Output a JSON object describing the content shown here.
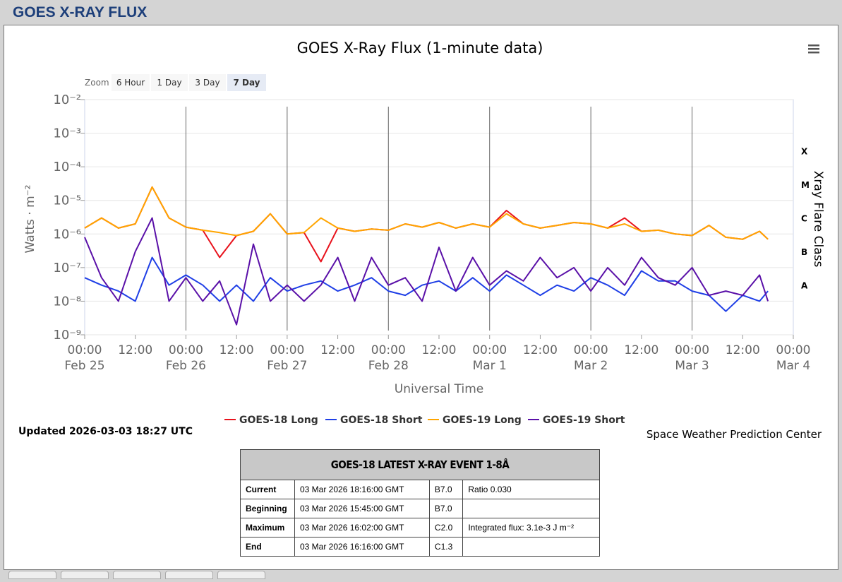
{
  "header": {
    "title": "GOES X-RAY FLUX"
  },
  "chart_data": {
    "type": "line",
    "title": "GOES X-Ray Flux (1-minute data)",
    "zoom": {
      "label": "Zoom",
      "buttons": [
        "6 Hour",
        "1 Day",
        "3 Day",
        "7 Day"
      ],
      "selected": 3
    },
    "x_title": "Universal Time",
    "y_title": "Watts · m⁻²",
    "y2_title": "Xray Flare Class",
    "log_y": true,
    "grid": true,
    "xlim": [
      0,
      168
    ],
    "xticks": [
      {
        "value": 0,
        "label": "00:00\nFeb 25"
      },
      {
        "value": 12,
        "label": "12:00"
      },
      {
        "value": 24,
        "label": "00:00\nFeb 26"
      },
      {
        "value": 36,
        "label": "12:00"
      },
      {
        "value": 48,
        "label": "00:00\nFeb 27"
      },
      {
        "value": 60,
        "label": "12:00"
      },
      {
        "value": 72,
        "label": "00:00\nFeb 28"
      },
      {
        "value": 84,
        "label": "12:00"
      },
      {
        "value": 96,
        "label": "00:00\nMar 1"
      },
      {
        "value": 108,
        "label": "12:00"
      },
      {
        "value": 120,
        "label": "00:00\nMar 2"
      },
      {
        "value": 132,
        "label": "12:00"
      },
      {
        "value": 144,
        "label": "00:00\nMar 3"
      },
      {
        "value": 156,
        "label": "12:00"
      },
      {
        "value": 168,
        "label": "00:00\nMar 4"
      }
    ],
    "ylim": [
      1e-09,
      0.01
    ],
    "yticks": [
      {
        "value": 1e-09,
        "label": "10⁻⁹"
      },
      {
        "value": 1e-08,
        "label": "10⁻⁸"
      },
      {
        "value": 1e-07,
        "label": "10⁻⁷"
      },
      {
        "value": 1e-06,
        "label": "10⁻⁶"
      },
      {
        "value": 1e-05,
        "label": "10⁻⁵"
      },
      {
        "value": 0.0001,
        "label": "10⁻⁴"
      },
      {
        "value": 0.001,
        "label": "10⁻³"
      },
      {
        "value": 0.01,
        "label": "10⁻²"
      }
    ],
    "y2lim": [
      1e-09,
      0.01
    ],
    "y2ticks": [
      {
        "value": 3e-08,
        "label": "A"
      },
      {
        "value": 3e-07,
        "label": "B"
      },
      {
        "value": 3e-06,
        "label": "C"
      },
      {
        "value": 3e-05,
        "label": "M"
      },
      {
        "value": 0.0003,
        "label": "X"
      }
    ],
    "x": [
      0,
      4,
      8,
      12,
      16,
      20,
      24,
      28,
      32,
      36,
      40,
      44,
      48,
      52,
      56,
      60,
      64,
      68,
      72,
      76,
      80,
      84,
      88,
      92,
      96,
      100,
      104,
      108,
      112,
      116,
      120,
      124,
      128,
      132,
      136,
      140,
      144,
      148,
      152,
      156,
      160,
      162
    ],
    "series": [
      {
        "name": "GOES-18 Long",
        "color": "#e8121c",
        "values": [
          1.5e-06,
          3e-06,
          1.5e-06,
          2e-06,
          2.5e-05,
          3e-06,
          1.6e-06,
          1.3e-06,
          2e-07,
          9e-07,
          1.2e-06,
          4e-06,
          1e-06,
          1.1e-06,
          1.5e-07,
          1.5e-06,
          1.2e-06,
          1.4e-06,
          1.3e-06,
          2e-06,
          1.6e-06,
          2.2e-06,
          1.5e-06,
          2e-06,
          1.6e-06,
          5e-06,
          2e-06,
          1.5e-06,
          1.8e-06,
          2.2e-06,
          2e-06,
          1.5e-06,
          3e-06,
          1.2e-06,
          1.3e-06,
          1e-06,
          9e-07,
          1.8e-06,
          8e-07,
          7e-07,
          1.2e-06,
          7e-07
        ]
      },
      {
        "name": "GOES-18 Short",
        "color": "#1f3fe6",
        "values": [
          5e-08,
          3e-08,
          2e-08,
          1e-08,
          2e-07,
          3e-08,
          6e-08,
          3e-08,
          1e-08,
          3e-08,
          1e-08,
          5e-08,
          2e-08,
          3e-08,
          4e-08,
          2e-08,
          3e-08,
          5e-08,
          2e-08,
          1.5e-08,
          3e-08,
          4e-08,
          2e-08,
          5e-08,
          2e-08,
          6e-08,
          3e-08,
          1.5e-08,
          3e-08,
          2e-08,
          5e-08,
          3e-08,
          1.5e-08,
          8e-08,
          4e-08,
          4e-08,
          2e-08,
          1.5e-08,
          5e-09,
          1.5e-08,
          1e-08,
          2e-08
        ]
      },
      {
        "name": "GOES-19 Long",
        "color": "#ffa500",
        "values": [
          1.5e-06,
          3e-06,
          1.5e-06,
          2e-06,
          2.5e-05,
          3e-06,
          1.6e-06,
          1.3e-06,
          1.1e-06,
          9e-07,
          1.2e-06,
          4e-06,
          1e-06,
          1.1e-06,
          3e-06,
          1.5e-06,
          1.2e-06,
          1.4e-06,
          1.3e-06,
          2e-06,
          1.6e-06,
          2.2e-06,
          1.5e-06,
          2e-06,
          1.6e-06,
          4e-06,
          2e-06,
          1.5e-06,
          1.8e-06,
          2.2e-06,
          2e-06,
          1.5e-06,
          2e-06,
          1.2e-06,
          1.3e-06,
          1e-06,
          9e-07,
          1.8e-06,
          8e-07,
          7e-07,
          1.2e-06,
          7e-07
        ]
      },
      {
        "name": "GOES-19 Short",
        "color": "#5a10a8",
        "values": [
          8e-07,
          5e-08,
          1e-08,
          3e-07,
          3e-06,
          1e-08,
          5e-08,
          1e-08,
          4e-08,
          2e-09,
          5e-07,
          1e-08,
          3e-08,
          1e-08,
          3e-08,
          2e-07,
          1e-08,
          2e-07,
          3e-08,
          5e-08,
          1e-08,
          4e-07,
          2e-08,
          2e-07,
          3e-08,
          8e-08,
          4e-08,
          2e-07,
          5e-08,
          1e-07,
          2e-08,
          1e-07,
          3e-08,
          2e-07,
          5e-08,
          3e-08,
          1e-07,
          1.5e-08,
          2e-08,
          1.5e-08,
          6e-08,
          1e-08
        ]
      }
    ]
  },
  "updated": "Updated 2026-03-03 18:27 UTC",
  "credit": "Space Weather Prediction Center",
  "table": {
    "title": "GOES-18 LATEST X-RAY EVENT 1-8Å",
    "rows": [
      [
        "Current",
        "03 Mar 2026 18:16:00 GMT",
        "B7.0",
        "Ratio 0.030"
      ],
      [
        "Beginning",
        "03 Mar 2026 15:45:00 GMT",
        "B7.0",
        null
      ],
      [
        "Maximum",
        "03 Mar 2026 16:02:00 GMT",
        "C2.0",
        "Integrated flux: 3.1e-3 J m⁻²"
      ],
      [
        "End",
        "03 Mar 2026 16:16:00 GMT",
        "C1.3",
        null
      ]
    ]
  }
}
